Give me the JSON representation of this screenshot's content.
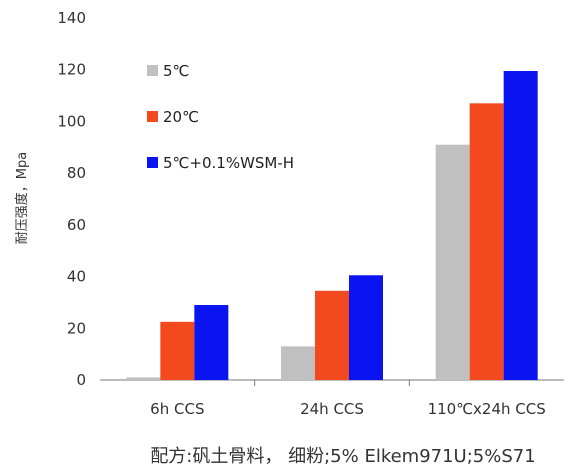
{
  "chart_data": {
    "type": "bar",
    "categories": [
      "6h CCS",
      "24h CCS",
      "110℃x24h CCS"
    ],
    "series": [
      {
        "name": "5℃",
        "color": "#c0c0c0",
        "values": [
          1,
          13,
          91
        ]
      },
      {
        "name": "20℃",
        "color": "#f24a1e",
        "values": [
          22.5,
          34.5,
          107
        ]
      },
      {
        "name": "5℃+0.1%WSM-H",
        "color": "#0a14f0",
        "values": [
          29,
          40.5,
          119.5
        ]
      }
    ],
    "ylabel": "耐压强度，Mpa",
    "ylim": [
      0,
      140
    ],
    "yticks": [
      0,
      20,
      40,
      60,
      80,
      100,
      120,
      140
    ],
    "grid": false,
    "legend_position": "top-left",
    "footnote": "配方:矾土骨料， 细粉;5% Elkem971U;5%S71"
  }
}
